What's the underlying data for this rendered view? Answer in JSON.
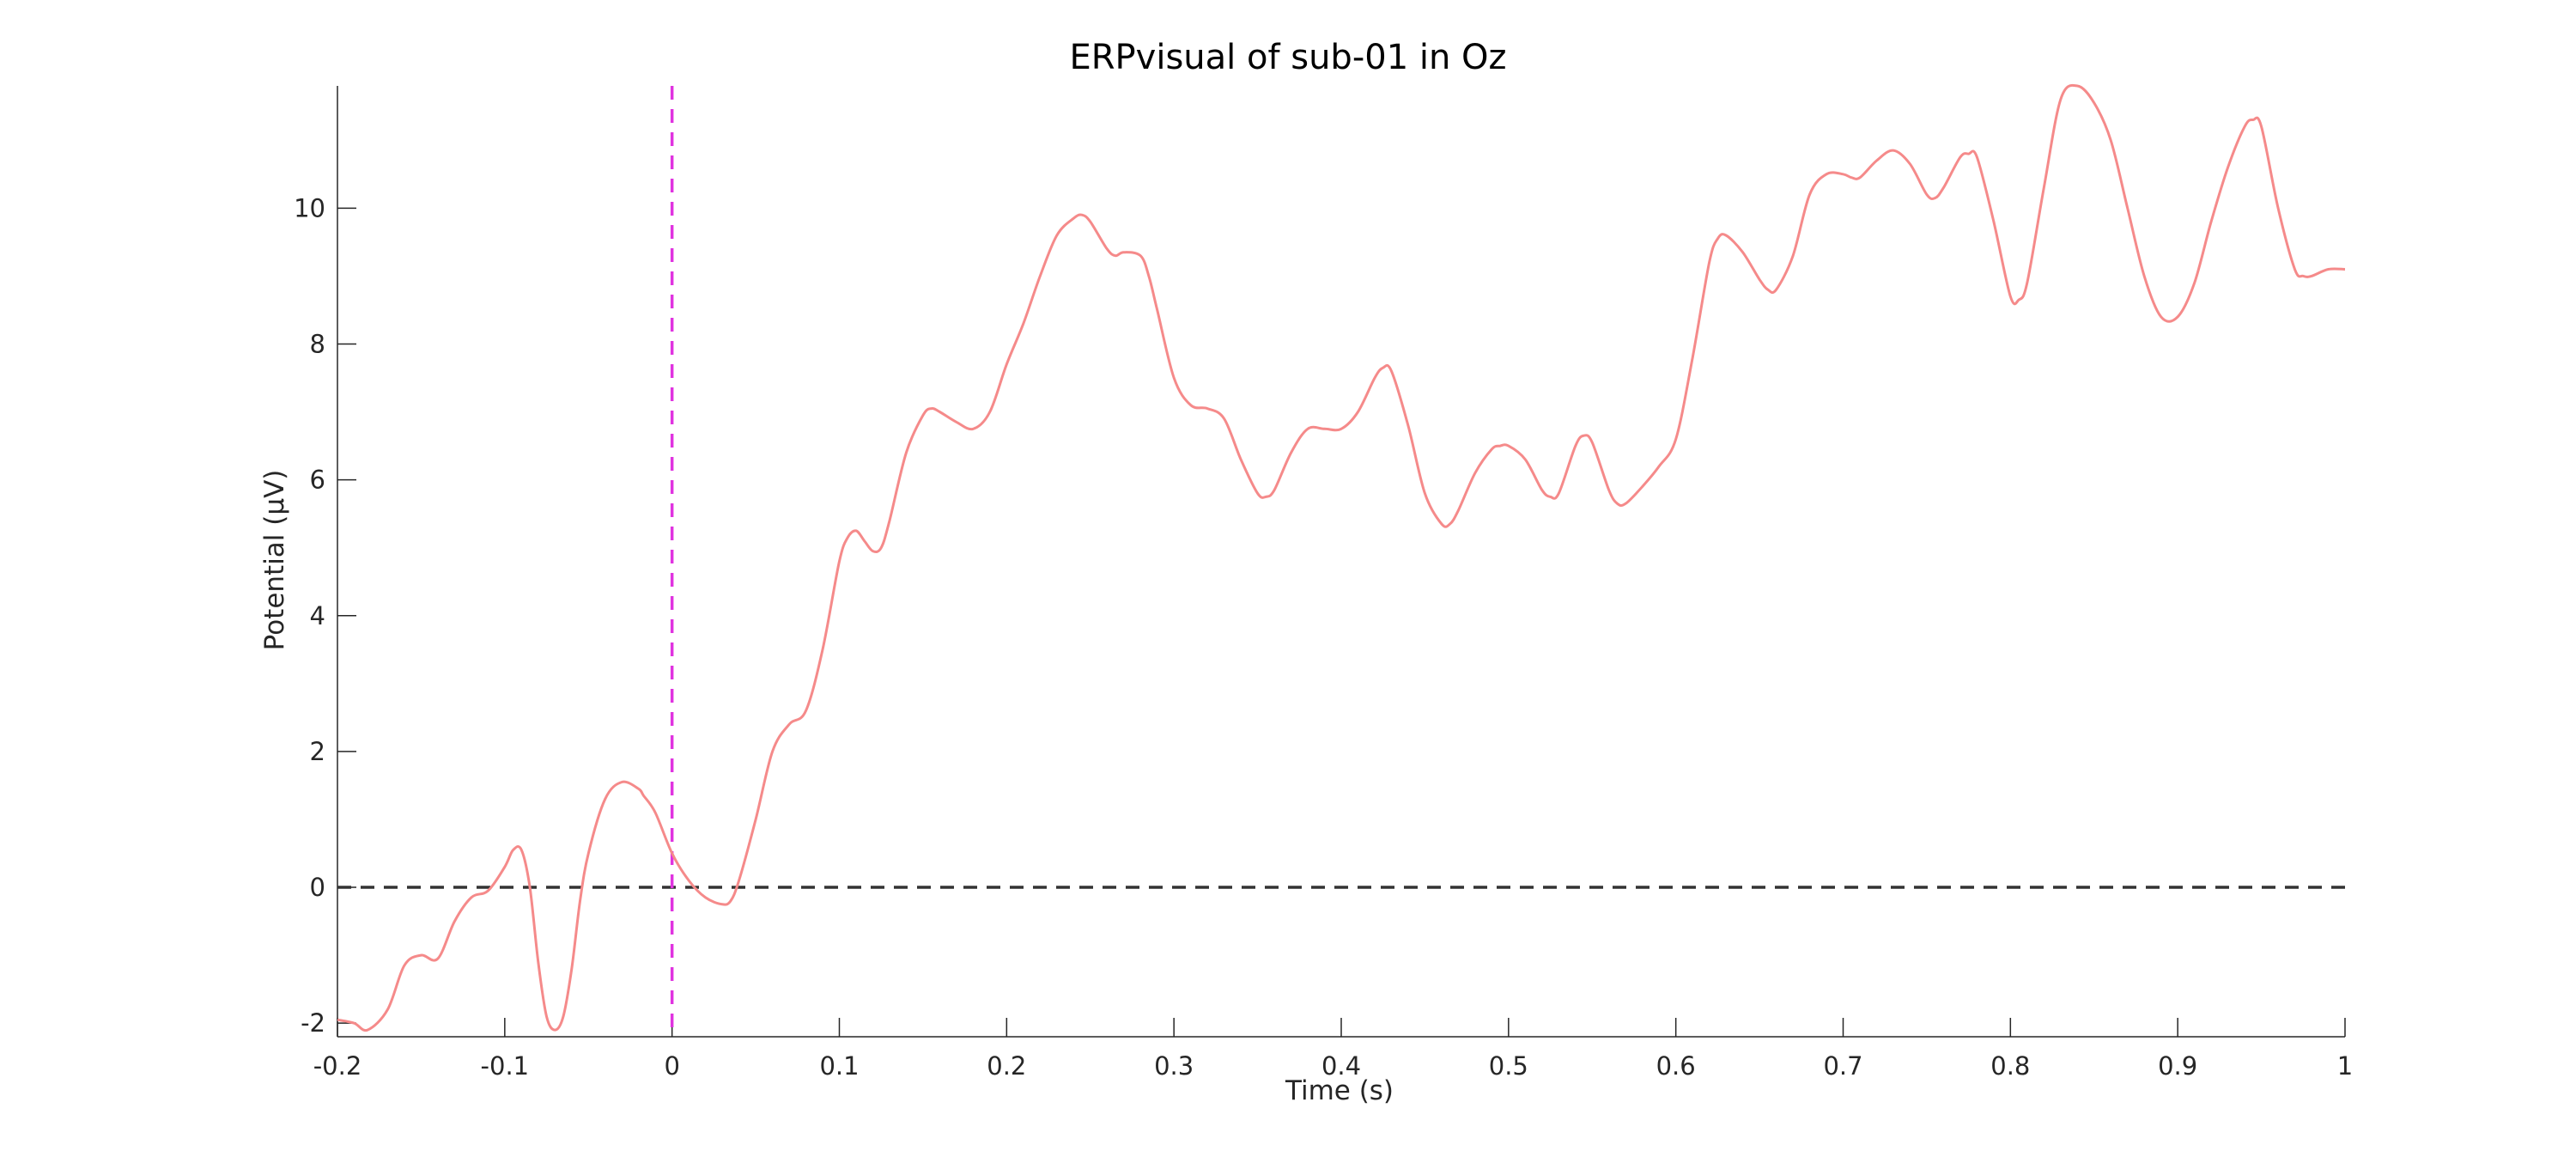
{
  "chart_data": {
    "type": "line",
    "title": "ERPvisual of sub-01 in Oz",
    "xlabel": "Time (s)",
    "ylabel": "Potential (μV)",
    "xlim": [
      -0.2,
      1.0
    ],
    "ylim": [
      -2.2,
      11.8
    ],
    "xticks": [
      -0.2,
      -0.1,
      0,
      0.1,
      0.2,
      0.3,
      0.4,
      0.5,
      0.6,
      0.7,
      0.8,
      0.9,
      1
    ],
    "xtick_labels": [
      "-0.2",
      "-0.1",
      "0",
      "0.1",
      "0.2",
      "0.3",
      "0.4",
      "0.5",
      "0.6",
      "0.7",
      "0.8",
      "0.9",
      "1"
    ],
    "yticks": [
      -2,
      0,
      2,
      4,
      6,
      8,
      10
    ],
    "ytick_labels": [
      "-2",
      "0",
      "2",
      "4",
      "6",
      "8",
      "10"
    ],
    "grid": false,
    "reference_lines": [
      {
        "orientation": "horizontal",
        "value": 0,
        "style": "dashed",
        "color": "#333333"
      },
      {
        "orientation": "vertical",
        "value": 0,
        "style": "dashed",
        "color": "#e033e0"
      }
    ],
    "series": [
      {
        "color": "#f58a8a",
        "x": [
          -0.2,
          -0.19,
          -0.182,
          -0.17,
          -0.16,
          -0.15,
          -0.14,
          -0.13,
          -0.12,
          -0.11,
          -0.1,
          -0.095,
          -0.09,
          -0.085,
          -0.08,
          -0.075,
          -0.07,
          -0.065,
          -0.06,
          -0.055,
          -0.05,
          -0.04,
          -0.03,
          -0.02,
          -0.017,
          -0.01,
          0,
          0.01,
          0.02,
          0.03,
          0.035,
          0.04,
          0.05,
          0.06,
          0.07,
          0.08,
          0.09,
          0.1,
          0.105,
          0.11,
          0.115,
          0.12,
          0.125,
          0.13,
          0.14,
          0.15,
          0.155,
          0.16,
          0.17,
          0.18,
          0.19,
          0.2,
          0.21,
          0.22,
          0.23,
          0.24,
          0.245,
          0.25,
          0.26,
          0.265,
          0.27,
          0.28,
          0.285,
          0.29,
          0.3,
          0.31,
          0.32,
          0.33,
          0.34,
          0.35,
          0.355,
          0.36,
          0.37,
          0.38,
          0.39,
          0.4,
          0.41,
          0.42,
          0.425,
          0.43,
          0.44,
          0.45,
          0.46,
          0.465,
          0.47,
          0.48,
          0.49,
          0.495,
          0.5,
          0.51,
          0.52,
          0.525,
          0.53,
          0.54,
          0.545,
          0.55,
          0.56,
          0.565,
          0.57,
          0.58,
          0.59,
          0.6,
          0.61,
          0.62,
          0.625,
          0.63,
          0.64,
          0.65,
          0.655,
          0.66,
          0.67,
          0.68,
          0.69,
          0.7,
          0.705,
          0.71,
          0.72,
          0.73,
          0.74,
          0.75,
          0.755,
          0.76,
          0.77,
          0.775,
          0.78,
          0.79,
          0.8,
          0.805,
          0.81,
          0.82,
          0.83,
          0.84,
          0.85,
          0.86,
          0.87,
          0.88,
          0.89,
          0.9,
          0.91,
          0.92,
          0.93,
          0.94,
          0.945,
          0.95,
          0.96,
          0.97,
          0.975,
          0.98,
          0.99,
          1.0
        ],
        "y": [
          -1.95,
          -2.0,
          -2.1,
          -1.8,
          -1.15,
          -1.0,
          -1.05,
          -0.5,
          -0.15,
          -0.05,
          0.3,
          0.55,
          0.55,
          0.0,
          -1.1,
          -1.9,
          -2.1,
          -1.9,
          -1.2,
          -0.2,
          0.5,
          1.3,
          1.55,
          1.45,
          1.35,
          1.1,
          0.5,
          0.1,
          -0.15,
          -0.25,
          -0.2,
          0.1,
          1.0,
          2.0,
          2.4,
          2.6,
          3.5,
          4.8,
          5.15,
          5.25,
          5.1,
          4.95,
          5.0,
          5.4,
          6.4,
          6.95,
          7.05,
          7.0,
          6.85,
          6.75,
          7.0,
          7.7,
          8.3,
          9.0,
          9.6,
          9.85,
          9.9,
          9.8,
          9.4,
          9.3,
          9.35,
          9.3,
          9.0,
          8.5,
          7.5,
          7.1,
          7.05,
          6.9,
          6.3,
          5.8,
          5.75,
          5.85,
          6.4,
          6.75,
          6.75,
          6.75,
          7.0,
          7.5,
          7.65,
          7.6,
          6.8,
          5.8,
          5.35,
          5.35,
          5.55,
          6.1,
          6.45,
          6.5,
          6.5,
          6.3,
          5.85,
          5.75,
          5.8,
          6.5,
          6.65,
          6.55,
          5.85,
          5.65,
          5.65,
          5.9,
          6.2,
          6.6,
          7.8,
          9.2,
          9.55,
          9.6,
          9.35,
          8.95,
          8.8,
          8.8,
          9.3,
          10.2,
          10.5,
          10.5,
          10.45,
          10.45,
          10.7,
          10.85,
          10.65,
          10.2,
          10.15,
          10.3,
          10.75,
          10.8,
          10.75,
          9.8,
          8.7,
          8.65,
          8.9,
          10.3,
          11.6,
          11.8,
          11.55,
          11.0,
          10.0,
          9.0,
          8.4,
          8.4,
          8.9,
          9.8,
          10.6,
          11.2,
          11.3,
          11.2,
          10.0,
          9.1,
          9.0,
          9.0,
          9.1,
          9.1
        ]
      }
    ]
  }
}
